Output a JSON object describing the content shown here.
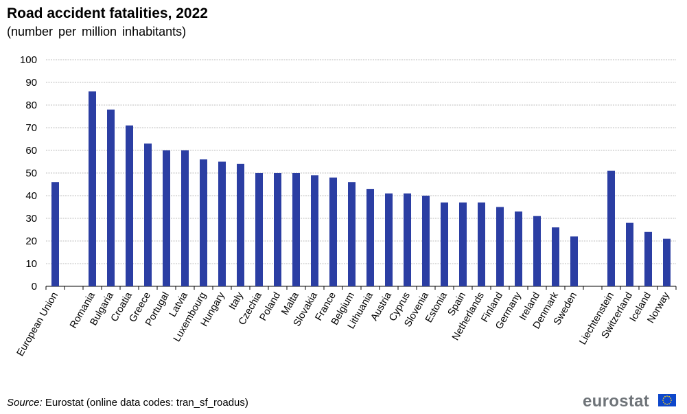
{
  "title": "Road accident fatalities, 2022",
  "subtitle": "(number per million inhabitants)",
  "source_label": "Source:",
  "source_text": "Eurostat (online data codes: tran_sf_roadus)",
  "logo_text": "eurostat",
  "colors": {
    "bar": "#2b3ea3",
    "grid": "#a6a6a6",
    "axis": "#000000"
  },
  "chart_data": {
    "type": "bar",
    "title": "Road accident fatalities, 2022",
    "subtitle": "(number per million inhabitants)",
    "categories": [
      "European Union",
      "",
      "Romania",
      "Bulgaria",
      "Croatia",
      "Greece",
      "Portugal",
      "Latvia",
      "Luxembourg",
      "Hungary",
      "Italy",
      "Czechia",
      "Poland",
      "Malta",
      "Slovakia",
      "France",
      "Belgium",
      "Lithuania",
      "Austria",
      "Cyprus",
      "Slovenia",
      "Estonia",
      "Spain",
      "Netherlands",
      "Finland",
      "Germany",
      "Ireland",
      "Denmark",
      "Sweden",
      "",
      "Liechtenstein",
      "Switzerland",
      "Iceland",
      "Norway"
    ],
    "values": [
      46,
      null,
      86,
      78,
      71,
      63,
      60,
      60,
      56,
      55,
      54,
      50,
      50,
      50,
      49,
      48,
      46,
      43,
      41,
      41,
      40,
      37,
      37,
      37,
      35,
      33,
      31,
      26,
      22,
      null,
      51,
      28,
      24,
      21
    ],
    "ylim": [
      0,
      100
    ],
    "yticks": [
      0,
      10,
      20,
      30,
      40,
      50,
      60,
      70,
      80,
      90,
      100
    ],
    "grid": true,
    "legend": "none"
  }
}
